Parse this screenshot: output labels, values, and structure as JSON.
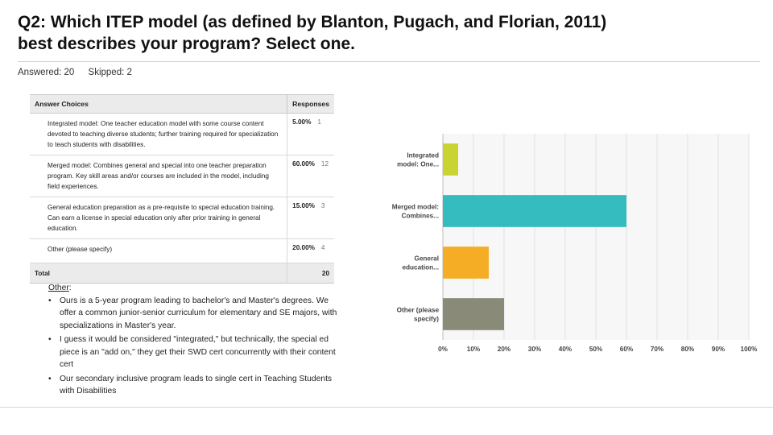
{
  "question": {
    "line1": "Q2: Which ITEP model (as defined by Blanton, Pugach, and Florian, 2011)",
    "line2": "best describes your program? Select one."
  },
  "stats": {
    "answered": "Answered: 20",
    "skipped": "Skipped: 2"
  },
  "table": {
    "header_choices": "Answer Choices",
    "header_responses": "Responses",
    "rows": [
      {
        "choice": "Integrated model: One teacher education model with some course content devoted to teaching diverse students; further training required for specialization to teach students with disabilities.",
        "percent": "5.00%",
        "count": "1"
      },
      {
        "choice": "Merged model: Combines general and special into one teacher preparation program. Key skill areas and/or courses are included in the model, including field experiences.",
        "percent": "60.00%",
        "count": "12"
      },
      {
        "choice": "General education preparation as a pre-requisite to special education training. Can earn a license in special education only after prior training in general education.",
        "percent": "15.00%",
        "count": "3"
      },
      {
        "choice": "Other (please specify)",
        "percent": "20.00%",
        "count": "4"
      }
    ],
    "total_label": "Total",
    "total_value": "20"
  },
  "other": {
    "label": "Other",
    "colon": ":",
    "items": [
      "Ours is a 5-year program leading to bachelor's and Master's degrees. We offer a common junior-senior curriculum for elementary and SE majors, with specializations in Master's year.",
      "I guess it would be considered \"integrated,\" but technically, the special ed piece is an \"add on,\" they get their SWD cert concurrently with their content cert",
      "Our secondary inclusive program leads to single cert in Teaching Students with Disabilities"
    ]
  },
  "chart_data": {
    "type": "bar",
    "orientation": "horizontal",
    "categories": [
      [
        "Integrated",
        "model: One..."
      ],
      [
        "Merged model:",
        "Combines..."
      ],
      [
        "General",
        "education..."
      ],
      [
        "Other (please",
        "specify)"
      ]
    ],
    "values": [
      5,
      60,
      15,
      20
    ],
    "colors": [
      "#c9d332",
      "#35bcbf",
      "#f4ad24",
      "#8a8a78"
    ],
    "xlim": [
      0,
      100
    ],
    "xticks": [
      "0%",
      "10%",
      "20%",
      "30%",
      "40%",
      "50%",
      "60%",
      "70%",
      "80%",
      "90%",
      "100%"
    ],
    "grid": true
  }
}
